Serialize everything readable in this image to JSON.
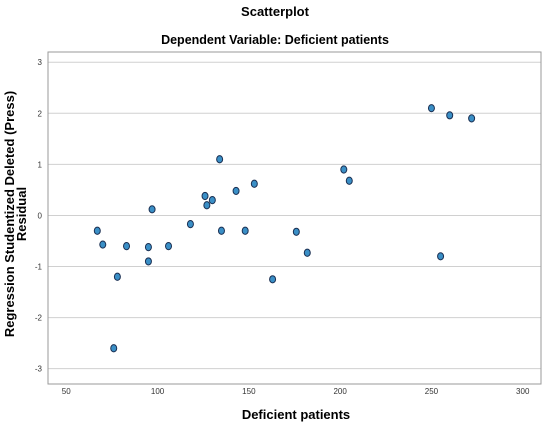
{
  "chart_data": {
    "type": "scatter",
    "title": "Scatterplot",
    "subtitle": "Dependent Variable: Deficient patients",
    "xlabel": "Deficient patients",
    "ylabel_line1": "Regression Studentized Deleted (Press)",
    "ylabel_line2": "Residual",
    "xlim": [
      40,
      310
    ],
    "ylim": [
      -3.3,
      3.2
    ],
    "x_ticks": [
      50,
      100,
      150,
      200,
      250,
      300
    ],
    "y_ticks": [
      -3,
      -2,
      -1,
      0,
      1,
      2,
      3
    ],
    "grid": "horizontal",
    "marker_color": "#3a8fc6",
    "marker_edge_color": "#1a2f52",
    "points": [
      {
        "x": 67,
        "y": -0.3
      },
      {
        "x": 70,
        "y": -0.57
      },
      {
        "x": 76,
        "y": -2.6
      },
      {
        "x": 78,
        "y": -1.2
      },
      {
        "x": 83,
        "y": -0.6
      },
      {
        "x": 95,
        "y": -0.62
      },
      {
        "x": 95,
        "y": -0.9
      },
      {
        "x": 97,
        "y": 0.12
      },
      {
        "x": 106,
        "y": -0.6
      },
      {
        "x": 118,
        "y": -0.17
      },
      {
        "x": 126,
        "y": 0.38
      },
      {
        "x": 127,
        "y": 0.2
      },
      {
        "x": 130,
        "y": 0.3
      },
      {
        "x": 134,
        "y": 1.1
      },
      {
        "x": 135,
        "y": -0.3
      },
      {
        "x": 143,
        "y": 0.48
      },
      {
        "x": 148,
        "y": -0.3
      },
      {
        "x": 153,
        "y": 0.62
      },
      {
        "x": 163,
        "y": -1.25
      },
      {
        "x": 176,
        "y": -0.32
      },
      {
        "x": 182,
        "y": -0.73
      },
      {
        "x": 202,
        "y": 0.9
      },
      {
        "x": 205,
        "y": 0.68
      },
      {
        "x": 250,
        "y": 2.1
      },
      {
        "x": 255,
        "y": -0.8
      },
      {
        "x": 260,
        "y": 1.96
      },
      {
        "x": 272,
        "y": 1.9
      }
    ]
  }
}
